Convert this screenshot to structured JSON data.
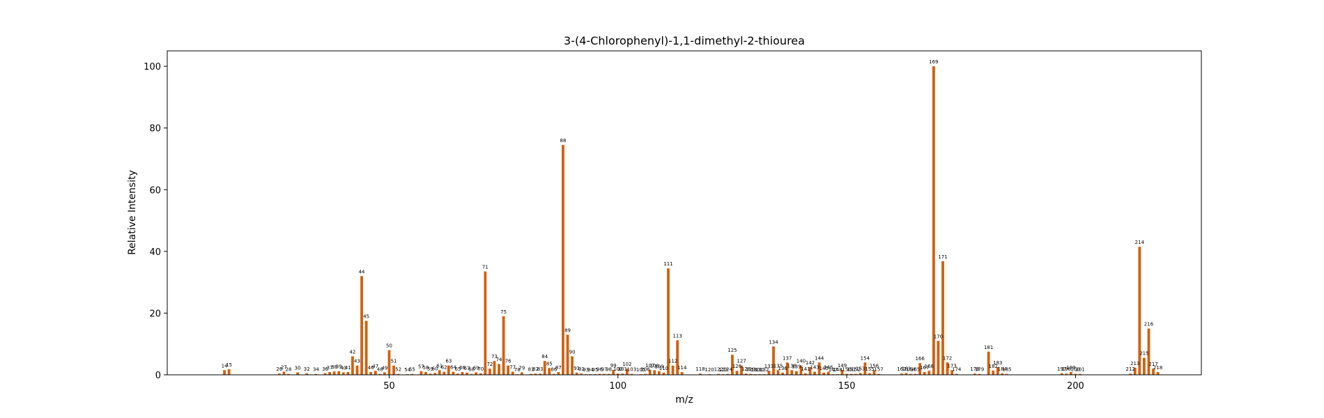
{
  "chart_data": {
    "type": "bar",
    "title": "3-(4-Chlorophenyl)-1,1-dimethyl-2-thiourea",
    "xlabel": "m/z",
    "ylabel": "Relative Intensity",
    "xlim": [
      1.5,
      227.5
    ],
    "ylim": [
      0,
      105
    ],
    "xticks": [
      50,
      100,
      150,
      200
    ],
    "yticks": [
      0,
      20,
      40,
      60,
      80,
      100
    ],
    "grid": false,
    "bar_color": "#d2600e",
    "peaks": [
      {
        "x": 14,
        "y": 1.5
      },
      {
        "x": 15,
        "y": 1.8
      },
      {
        "x": 26,
        "y": 0.4
      },
      {
        "x": 27,
        "y": 1.0
      },
      {
        "x": 28,
        "y": 0.3
      },
      {
        "x": 30,
        "y": 0.8
      },
      {
        "x": 32,
        "y": 0.5
      },
      {
        "x": 34,
        "y": 0.3
      },
      {
        "x": 36,
        "y": 0.5
      },
      {
        "x": 37,
        "y": 0.9
      },
      {
        "x": 38,
        "y": 1.1
      },
      {
        "x": 39,
        "y": 1.2
      },
      {
        "x": 40,
        "y": 0.8
      },
      {
        "x": 41,
        "y": 0.9
      },
      {
        "x": 42,
        "y": 6.0
      },
      {
        "x": 43,
        "y": 3.0
      },
      {
        "x": 44,
        "y": 32.0
      },
      {
        "x": 45,
        "y": 17.5
      },
      {
        "x": 46,
        "y": 0.9
      },
      {
        "x": 47,
        "y": 1.3
      },
      {
        "x": 48,
        "y": 0.3
      },
      {
        "x": 49,
        "y": 0.8
      },
      {
        "x": 50,
        "y": 8.0
      },
      {
        "x": 51,
        "y": 3.0
      },
      {
        "x": 52,
        "y": 0.3
      },
      {
        "x": 54,
        "y": 0.2
      },
      {
        "x": 55,
        "y": 0.3
      },
      {
        "x": 57,
        "y": 1.2
      },
      {
        "x": 58,
        "y": 0.9
      },
      {
        "x": 59,
        "y": 0.4
      },
      {
        "x": 60,
        "y": 0.6
      },
      {
        "x": 61,
        "y": 1.5
      },
      {
        "x": 62,
        "y": 1.0
      },
      {
        "x": 63,
        "y": 3.0
      },
      {
        "x": 64,
        "y": 1.0
      },
      {
        "x": 65,
        "y": 0.4
      },
      {
        "x": 66,
        "y": 0.9
      },
      {
        "x": 67,
        "y": 0.7
      },
      {
        "x": 68,
        "y": 0.3
      },
      {
        "x": 69,
        "y": 0.8
      },
      {
        "x": 70,
        "y": 0.5
      },
      {
        "x": 71,
        "y": 33.5
      },
      {
        "x": 72,
        "y": 2.0
      },
      {
        "x": 73,
        "y": 4.5
      },
      {
        "x": 74,
        "y": 3.5
      },
      {
        "x": 75,
        "y": 19.0
      },
      {
        "x": 76,
        "y": 3.0
      },
      {
        "x": 77,
        "y": 1.0
      },
      {
        "x": 78,
        "y": 0.2
      },
      {
        "x": 79,
        "y": 0.8
      },
      {
        "x": 81,
        "y": 0.3
      },
      {
        "x": 82,
        "y": 0.4
      },
      {
        "x": 83,
        "y": 0.4
      },
      {
        "x": 84,
        "y": 4.5
      },
      {
        "x": 85,
        "y": 2.2
      },
      {
        "x": 86,
        "y": 0.3
      },
      {
        "x": 87,
        "y": 0.9
      },
      {
        "x": 88,
        "y": 74.5
      },
      {
        "x": 89,
        "y": 13.0
      },
      {
        "x": 90,
        "y": 6.0
      },
      {
        "x": 91,
        "y": 0.7
      },
      {
        "x": 92,
        "y": 0.4
      },
      {
        "x": 93,
        "y": 0.2
      },
      {
        "x": 94,
        "y": 0.2
      },
      {
        "x": 95,
        "y": 0.2
      },
      {
        "x": 96,
        "y": 0.3
      },
      {
        "x": 97,
        "y": 0.3
      },
      {
        "x": 98,
        "y": 0.3
      },
      {
        "x": 99,
        "y": 1.6
      },
      {
        "x": 100,
        "y": 0.4
      },
      {
        "x": 101,
        "y": 0.4
      },
      {
        "x": 102,
        "y": 2.0
      },
      {
        "x": 103,
        "y": 0.3
      },
      {
        "x": 105,
        "y": 0.2
      },
      {
        "x": 106,
        "y": 0.3
      },
      {
        "x": 107,
        "y": 1.6
      },
      {
        "x": 108,
        "y": 1.5
      },
      {
        "x": 109,
        "y": 1.2
      },
      {
        "x": 110,
        "y": 0.7
      },
      {
        "x": 111,
        "y": 34.5
      },
      {
        "x": 112,
        "y": 3.0
      },
      {
        "x": 113,
        "y": 11.2
      },
      {
        "x": 114,
        "y": 0.9
      },
      {
        "x": 118,
        "y": 0.4
      },
      {
        "x": 120,
        "y": 0.2
      },
      {
        "x": 122,
        "y": 0.3
      },
      {
        "x": 123,
        "y": 0.2
      },
      {
        "x": 124,
        "y": 0.3
      },
      {
        "x": 125,
        "y": 6.5
      },
      {
        "x": 126,
        "y": 1.3
      },
      {
        "x": 127,
        "y": 3.0
      },
      {
        "x": 128,
        "y": 0.4
      },
      {
        "x": 129,
        "y": 0.3
      },
      {
        "x": 130,
        "y": 0.2
      },
      {
        "x": 131,
        "y": 0.2
      },
      {
        "x": 132,
        "y": 0.2
      },
      {
        "x": 133,
        "y": 1.3
      },
      {
        "x": 134,
        "y": 9.2
      },
      {
        "x": 135,
        "y": 1.5
      },
      {
        "x": 136,
        "y": 0.7
      },
      {
        "x": 137,
        "y": 4.0
      },
      {
        "x": 138,
        "y": 1.5
      },
      {
        "x": 139,
        "y": 1.2
      },
      {
        "x": 140,
        "y": 3.0
      },
      {
        "x": 141,
        "y": 0.5
      },
      {
        "x": 142,
        "y": 2.5
      },
      {
        "x": 143,
        "y": 1.0
      },
      {
        "x": 144,
        "y": 4.0
      },
      {
        "x": 145,
        "y": 0.7
      },
      {
        "x": 146,
        "y": 1.0
      },
      {
        "x": 147,
        "y": 0.2
      },
      {
        "x": 148,
        "y": 0.2
      },
      {
        "x": 149,
        "y": 1.6
      },
      {
        "x": 150,
        "y": 0.3
      },
      {
        "x": 151,
        "y": 0.3
      },
      {
        "x": 152,
        "y": 0.3
      },
      {
        "x": 153,
        "y": 0.6
      },
      {
        "x": 154,
        "y": 4.0
      },
      {
        "x": 155,
        "y": 0.5
      },
      {
        "x": 156,
        "y": 1.5
      },
      {
        "x": 157,
        "y": 0.3
      },
      {
        "x": 162,
        "y": 0.4
      },
      {
        "x": 163,
        "y": 0.6
      },
      {
        "x": 164,
        "y": 0.3
      },
      {
        "x": 165,
        "y": 0.3
      },
      {
        "x": 166,
        "y": 3.8
      },
      {
        "x": 167,
        "y": 0.9
      },
      {
        "x": 168,
        "y": 1.3
      },
      {
        "x": 169,
        "y": 100
      },
      {
        "x": 170,
        "y": 11.0
      },
      {
        "x": 171,
        "y": 36.8
      },
      {
        "x": 172,
        "y": 4.0
      },
      {
        "x": 173,
        "y": 1.5
      },
      {
        "x": 174,
        "y": 0.3
      },
      {
        "x": 178,
        "y": 0.4
      },
      {
        "x": 179,
        "y": 0.3
      },
      {
        "x": 181,
        "y": 7.5
      },
      {
        "x": 182,
        "y": 1.4
      },
      {
        "x": 183,
        "y": 2.5
      },
      {
        "x": 184,
        "y": 0.5
      },
      {
        "x": 185,
        "y": 0.3
      },
      {
        "x": 197,
        "y": 0.5
      },
      {
        "x": 198,
        "y": 0.4
      },
      {
        "x": 199,
        "y": 0.9
      },
      {
        "x": 200,
        "y": 0.3
      },
      {
        "x": 201,
        "y": 0.3
      },
      {
        "x": 212,
        "y": 0.4
      },
      {
        "x": 213,
        "y": 2.3
      },
      {
        "x": 214,
        "y": 41.5
      },
      {
        "x": 215,
        "y": 5.5
      },
      {
        "x": 216,
        "y": 15.0
      },
      {
        "x": 217,
        "y": 2.0
      },
      {
        "x": 218,
        "y": 0.9
      }
    ]
  }
}
